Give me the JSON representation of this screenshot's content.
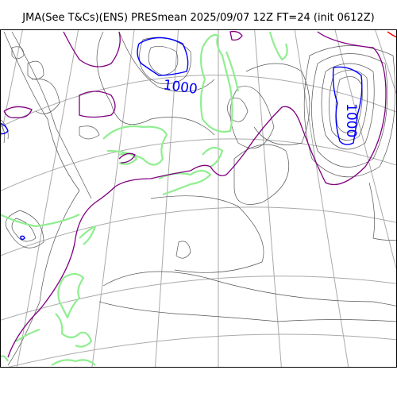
{
  "title": "JMA(See T&Cs)(ENS) PRESmean 2025/09/07 12Z FT=24 (init 0612Z)",
  "map": {
    "layers": [
      "graticule",
      "coastline",
      "isobars"
    ],
    "isobar_labels": [
      "1000",
      "1000"
    ],
    "colors": {
      "graticule": "#aaaaaa",
      "coastline": "#90ee90",
      "isobar_thin": "#555555",
      "isobar_purple": "#800080",
      "isobar_blue": "#0000ff",
      "isobar_red": "#ff0000",
      "frame": "#000000"
    }
  }
}
